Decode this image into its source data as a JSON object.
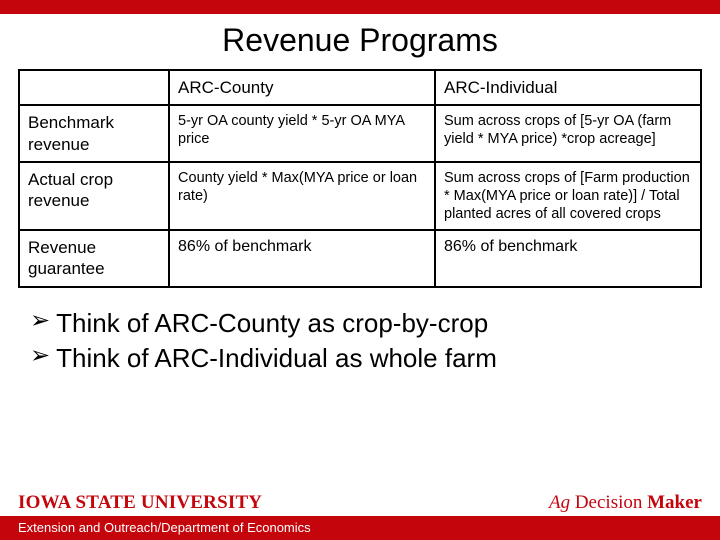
{
  "colors": {
    "brand_red": "#c5050c",
    "black": "#000000",
    "white": "#ffffff"
  },
  "title": "Revenue Programs",
  "table": {
    "columns": [
      "",
      "ARC-County",
      "ARC-Individual"
    ],
    "rows": [
      {
        "label": "Benchmark revenue",
        "county": "5-yr OA county yield * 5-yr OA MYA price",
        "individual": "Sum across crops of [5-yr OA (farm yield * MYA price) *crop acreage]"
      },
      {
        "label": "Actual crop revenue",
        "county": "County yield * Max(MYA price or loan rate)",
        "individual": "Sum across crops of [Farm production * Max(MYA price or loan rate)] / Total planted acres of all covered crops"
      },
      {
        "label": "Revenue guarantee",
        "county": "86% of benchmark",
        "individual": "86% of benchmark"
      }
    ]
  },
  "bullets": [
    "Think of ARC-County as crop-by-crop",
    "Think of ARC-Individual as whole farm"
  ],
  "footer": {
    "isu": "IOWA STATE UNIVERSITY",
    "adm_ag": "Ag ",
    "adm_decision": "Decision ",
    "adm_maker": "Maker",
    "dept": "Extension and Outreach/Department of Economics"
  }
}
